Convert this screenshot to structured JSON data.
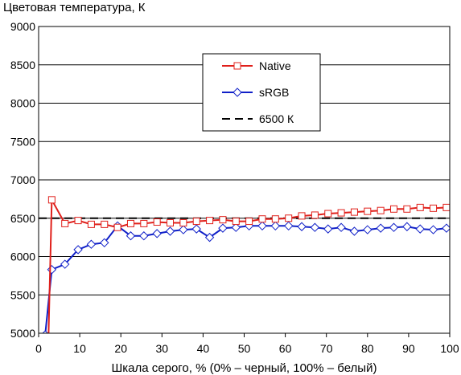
{
  "chart_data": {
    "type": "line",
    "title": "Цветовая температура, К",
    "xlabel": "Шкала серого, % (0% – черный, 100% – белый)",
    "ylabel": "",
    "xlim": [
      0,
      100
    ],
    "ylim": [
      5000,
      9000
    ],
    "xticks": [
      "0",
      "10",
      "20",
      "30",
      "40",
      "50",
      "60",
      "70",
      "80",
      "90",
      "100"
    ],
    "yticks": [
      "5000",
      "5500",
      "6000",
      "6500",
      "7000",
      "7500",
      "8000",
      "8500",
      "9000"
    ],
    "grid": "horizontal",
    "legend_position": "top-center",
    "series": [
      {
        "name": "Native",
        "color": "#e0201b",
        "marker": "square",
        "x": [
          2.4,
          3.2,
          6.4,
          9.6,
          12.8,
          16,
          19.2,
          22.4,
          25.6,
          28.8,
          32,
          35.2,
          38.4,
          41.6,
          44.8,
          48,
          51.2,
          54.4,
          57.6,
          60.8,
          64,
          67.2,
          70.4,
          73.6,
          76.8,
          80,
          83.2,
          86.4,
          89.6,
          92.8,
          96,
          99.2
        ],
        "values": [
          4950,
          6740,
          6430,
          6470,
          6420,
          6420,
          6380,
          6430,
          6430,
          6450,
          6440,
          6440,
          6460,
          6470,
          6480,
          6460,
          6460,
          6490,
          6490,
          6500,
          6530,
          6540,
          6560,
          6570,
          6580,
          6590,
          6600,
          6620,
          6620,
          6640,
          6630,
          6640
        ]
      },
      {
        "name": "sRGB",
        "color": "#1020c8",
        "marker": "diamond",
        "x": [
          1.6,
          3.2,
          6.4,
          9.6,
          12.8,
          16,
          19.2,
          22.4,
          25.6,
          28.8,
          32,
          35.2,
          38.4,
          41.6,
          44.8,
          48,
          51.2,
          54.4,
          57.6,
          60.8,
          64,
          67.2,
          70.4,
          73.6,
          76.8,
          80,
          83.2,
          86.4,
          89.6,
          92.8,
          96,
          99.2
        ],
        "values": [
          4980,
          5830,
          5900,
          6090,
          6160,
          6180,
          6400,
          6270,
          6270,
          6300,
          6330,
          6350,
          6360,
          6250,
          6370,
          6380,
          6400,
          6400,
          6400,
          6400,
          6390,
          6380,
          6360,
          6380,
          6330,
          6350,
          6370,
          6380,
          6390,
          6360,
          6350,
          6370
        ]
      },
      {
        "name": "6500 К",
        "color": "#000000",
        "style": "dashed",
        "x": [
          0,
          100
        ],
        "values": [
          6500,
          6500
        ]
      }
    ]
  }
}
